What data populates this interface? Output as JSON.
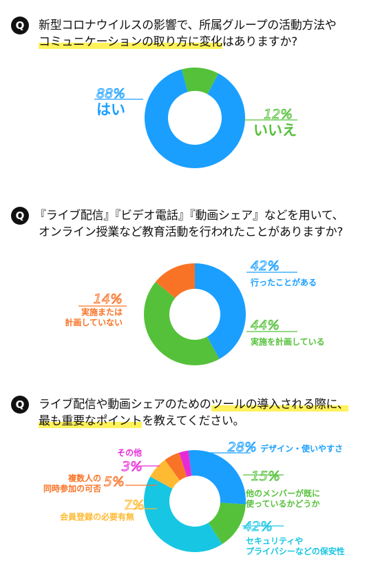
{
  "q1": {
    "badge": "Q",
    "line1": "新型コロナウイルスの影響で、所属グループの活動方法や",
    "line2_highlight": "コミュニケーションの取り方に変化",
    "line2_rest": "はありますか?",
    "chart_data": {
      "type": "pie",
      "values": [
        88,
        12
      ],
      "percent_labels": [
        "88%",
        "12%"
      ],
      "categories": [
        "はい",
        "いいえ"
      ],
      "colors": [
        "#1a9fff",
        "#55c13a"
      ]
    }
  },
  "q2": {
    "badge": "Q",
    "line1": "『ライブ配信』『ビデオ電話』『動画シェア』などを用いて、",
    "line2": "オンライン授業など教育活動を行われたことがありますか?",
    "chart_data": {
      "type": "pie",
      "values": [
        42,
        44,
        14
      ],
      "percent_labels": [
        "42%",
        "44%",
        "14%"
      ],
      "categories": [
        "行ったことがある",
        "実施を計画している",
        "実施または計画していない"
      ],
      "label_lines": [
        [
          "行ったことがある"
        ],
        [
          "実施を計画している"
        ],
        [
          "実施または",
          "計画していない"
        ]
      ],
      "colors": [
        "#1a9fff",
        "#55c13a",
        "#f97326"
      ]
    }
  },
  "q3": {
    "badge": "Q",
    "line1_pre": "ライブ配信や動画シェアのための",
    "line1_highlight": "ツールの導入される際に、",
    "line2_highlight": "最も重要なポイント",
    "line2_rest": "を教えてください。",
    "chart_data": {
      "type": "pie",
      "values": [
        28,
        15,
        42,
        7,
        5,
        3
      ],
      "percent_labels": [
        "28%",
        "15%",
        "42%",
        "7%",
        "5%",
        "3%"
      ],
      "categories": [
        "デザイン・使いやすさ",
        "他のメンバーが既に使っているかどうか",
        "セキュリティやプライバシーなどの保安性",
        "会員登録の必要有無",
        "複数人の同時参加の可否",
        "その他"
      ],
      "label_lines": [
        [
          "デザイン・使いやすさ"
        ],
        [
          "他のメンバーが既に",
          "使っているかどうか"
        ],
        [
          "セキュリティや",
          "プライバシーなどの保安性"
        ],
        [
          "会員登録の必要有無"
        ],
        [
          "複数人の",
          "同時参加の可否"
        ],
        [
          "その他"
        ]
      ],
      "colors": [
        "#1a9fff",
        "#55c13a",
        "#17c6e3",
        "#ffba33",
        "#f97326",
        "#e62bd6"
      ]
    }
  }
}
